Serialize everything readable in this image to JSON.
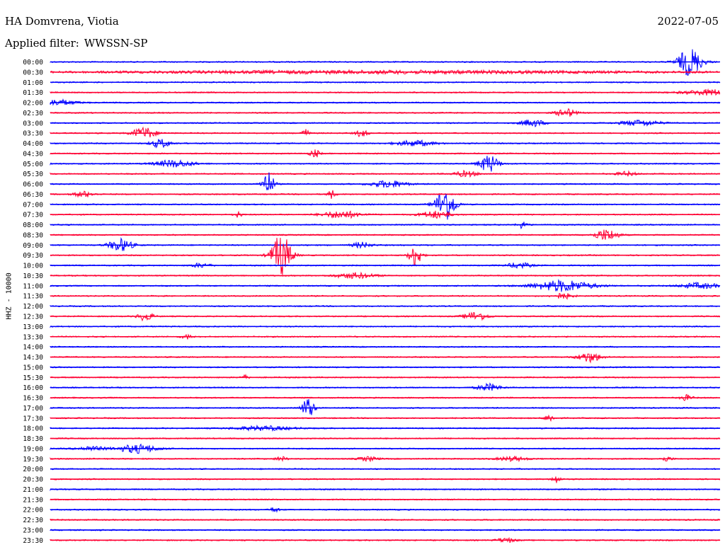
{
  "header": {
    "station": "HA Domvrena, Viotia",
    "date": "2022-07-05",
    "filter_label": "Applied filter:",
    "filter_value": "WWSSN-SP"
  },
  "chart_data": {
    "type": "line",
    "title": "HA Domvrena, Viotia",
    "ylabel": "HHZ - 10000",
    "line_colors": [
      "#0000ff",
      "#ff0033"
    ],
    "row_labels": [
      "00:00",
      "00:30",
      "01:00",
      "01:30",
      "02:00",
      "02:30",
      "03:00",
      "03:30",
      "04:00",
      "04:30",
      "05:00",
      "05:30",
      "06:00",
      "06:30",
      "07:00",
      "07:30",
      "08:00",
      "08:30",
      "09:00",
      "09:30",
      "10:00",
      "10:30",
      "11:00",
      "11:30",
      "12:00",
      "12:30",
      "13:00",
      "13:30",
      "14:00",
      "14:30",
      "15:00",
      "15:30",
      "16:00",
      "16:30",
      "17:00",
      "17:30",
      "18:00",
      "18:30",
      "19:00",
      "19:30",
      "20:00",
      "20:30",
      "21:00",
      "21:30",
      "22:00",
      "22:30",
      "23:00",
      "23:30"
    ],
    "events": [
      {
        "row": 0,
        "x": 0.955,
        "amp": 20,
        "dur": 0.012
      },
      {
        "row": 1,
        "x": 0.5,
        "amp": 2,
        "dur": 0.3
      },
      {
        "row": 3,
        "x": 0.99,
        "amp": 4,
        "dur": 0.03
      },
      {
        "row": 4,
        "x": 0.01,
        "amp": 4,
        "dur": 0.02
      },
      {
        "row": 5,
        "x": 0.77,
        "amp": 6,
        "dur": 0.01
      },
      {
        "row": 6,
        "x": 0.72,
        "amp": 5,
        "dur": 0.012
      },
      {
        "row": 6,
        "x": 0.88,
        "amp": 4,
        "dur": 0.02
      },
      {
        "row": 7,
        "x": 0.14,
        "amp": 8,
        "dur": 0.012
      },
      {
        "row": 7,
        "x": 0.38,
        "amp": 6,
        "dur": 0.004
      },
      {
        "row": 7,
        "x": 0.465,
        "amp": 5,
        "dur": 0.006
      },
      {
        "row": 8,
        "x": 0.165,
        "amp": 6,
        "dur": 0.01
      },
      {
        "row": 8,
        "x": 0.545,
        "amp": 4,
        "dur": 0.02
      },
      {
        "row": 9,
        "x": 0.395,
        "amp": 6,
        "dur": 0.005
      },
      {
        "row": 10,
        "x": 0.185,
        "amp": 5,
        "dur": 0.02
      },
      {
        "row": 10,
        "x": 0.655,
        "amp": 12,
        "dur": 0.01
      },
      {
        "row": 11,
        "x": 0.62,
        "amp": 4,
        "dur": 0.012
      },
      {
        "row": 11,
        "x": 0.86,
        "amp": 3,
        "dur": 0.01
      },
      {
        "row": 12,
        "x": 0.325,
        "amp": 18,
        "dur": 0.006
      },
      {
        "row": 12,
        "x": 0.505,
        "amp": 5,
        "dur": 0.018
      },
      {
        "row": 13,
        "x": 0.05,
        "amp": 4,
        "dur": 0.01
      },
      {
        "row": 13,
        "x": 0.42,
        "amp": 6,
        "dur": 0.004
      },
      {
        "row": 14,
        "x": 0.59,
        "amp": 24,
        "dur": 0.01
      },
      {
        "row": 15,
        "x": 0.28,
        "amp": 4,
        "dur": 0.004
      },
      {
        "row": 15,
        "x": 0.435,
        "amp": 5,
        "dur": 0.02
      },
      {
        "row": 15,
        "x": 0.575,
        "amp": 5,
        "dur": 0.015
      },
      {
        "row": 16,
        "x": 0.705,
        "amp": 5,
        "dur": 0.005
      },
      {
        "row": 17,
        "x": 0.83,
        "amp": 8,
        "dur": 0.012
      },
      {
        "row": 18,
        "x": 0.105,
        "amp": 9,
        "dur": 0.012
      },
      {
        "row": 18,
        "x": 0.465,
        "amp": 4,
        "dur": 0.01
      },
      {
        "row": 19,
        "x": 0.345,
        "amp": 30,
        "dur": 0.01
      },
      {
        "row": 19,
        "x": 0.545,
        "amp": 16,
        "dur": 0.006
      },
      {
        "row": 20,
        "x": 0.225,
        "amp": 3,
        "dur": 0.01
      },
      {
        "row": 20,
        "x": 0.7,
        "amp": 4,
        "dur": 0.012
      },
      {
        "row": 21,
        "x": 0.455,
        "amp": 4,
        "dur": 0.02
      },
      {
        "row": 22,
        "x": 0.765,
        "amp": 8,
        "dur": 0.03
      },
      {
        "row": 22,
        "x": 0.97,
        "amp": 4,
        "dur": 0.02
      },
      {
        "row": 23,
        "x": 0.765,
        "amp": 4,
        "dur": 0.01
      },
      {
        "row": 25,
        "x": 0.142,
        "amp": 6,
        "dur": 0.008
      },
      {
        "row": 25,
        "x": 0.635,
        "amp": 6,
        "dur": 0.012
      },
      {
        "row": 27,
        "x": 0.205,
        "amp": 3,
        "dur": 0.006
      },
      {
        "row": 29,
        "x": 0.805,
        "amp": 7,
        "dur": 0.012
      },
      {
        "row": 31,
        "x": 0.29,
        "amp": 3,
        "dur": 0.004
      },
      {
        "row": 32,
        "x": 0.655,
        "amp": 5,
        "dur": 0.012
      },
      {
        "row": 33,
        "x": 0.95,
        "amp": 4,
        "dur": 0.006
      },
      {
        "row": 34,
        "x": 0.385,
        "amp": 15,
        "dur": 0.006
      },
      {
        "row": 35,
        "x": 0.745,
        "amp": 5,
        "dur": 0.005
      },
      {
        "row": 36,
        "x": 0.32,
        "amp": 3,
        "dur": 0.03
      },
      {
        "row": 38,
        "x": 0.06,
        "amp": 3,
        "dur": 0.015
      },
      {
        "row": 38,
        "x": 0.13,
        "amp": 6,
        "dur": 0.02
      },
      {
        "row": 39,
        "x": 0.345,
        "amp": 3,
        "dur": 0.006
      },
      {
        "row": 39,
        "x": 0.475,
        "amp": 3,
        "dur": 0.01
      },
      {
        "row": 39,
        "x": 0.69,
        "amp": 3,
        "dur": 0.015
      },
      {
        "row": 39,
        "x": 0.92,
        "amp": 3,
        "dur": 0.006
      },
      {
        "row": 41,
        "x": 0.755,
        "amp": 6,
        "dur": 0.004
      },
      {
        "row": 44,
        "x": 0.335,
        "amp": 4,
        "dur": 0.004
      },
      {
        "row": 47,
        "x": 0.68,
        "amp": 3,
        "dur": 0.01
      }
    ]
  }
}
